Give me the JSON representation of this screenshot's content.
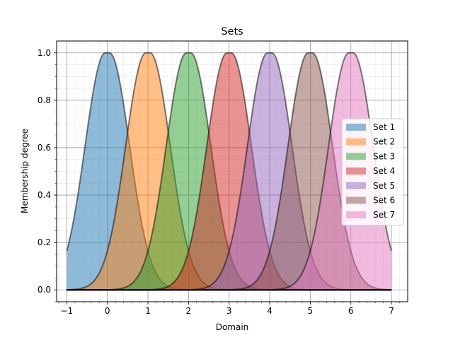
{
  "chart_data": {
    "type": "area",
    "title": "Sets",
    "xlabel": "Domain",
    "ylabel": "Membership degree",
    "xlim": [
      -1.25,
      7.4
    ],
    "ylim": [
      -0.05,
      1.05
    ],
    "grid": true,
    "minor_grid": true,
    "legend_position": "center-right",
    "x_ticks": [
      -1,
      0,
      1,
      2,
      3,
      4,
      5,
      6,
      7
    ],
    "x_tick_labels": [
      "−1",
      "0",
      "1",
      "2",
      "3",
      "4",
      "5",
      "6",
      "7"
    ],
    "y_ticks": [
      0.0,
      0.2,
      0.4,
      0.6,
      0.8,
      1.0
    ],
    "y_tick_labels": [
      "0.0",
      "0.2",
      "0.4",
      "0.6",
      "0.8",
      "1.0"
    ],
    "x_range": [
      -1,
      7
    ],
    "series": [
      {
        "name": "Set 1",
        "shape": "gaussian-plateau",
        "center": 0,
        "plateau_halfwidth": 0.05,
        "sigma": 0.5,
        "color": "#1f77b4"
      },
      {
        "name": "Set 2",
        "shape": "gaussian-plateau",
        "center": 1,
        "plateau_halfwidth": 0.05,
        "sigma": 0.5,
        "color": "#ff7f0e"
      },
      {
        "name": "Set 3",
        "shape": "gaussian-plateau",
        "center": 2,
        "plateau_halfwidth": 0.05,
        "sigma": 0.5,
        "color": "#2ca02c"
      },
      {
        "name": "Set 4",
        "shape": "gaussian-plateau",
        "center": 3,
        "plateau_halfwidth": 0.05,
        "sigma": 0.5,
        "color": "#d62728"
      },
      {
        "name": "Set 5",
        "shape": "gaussian-plateau",
        "center": 4,
        "plateau_halfwidth": 0.05,
        "sigma": 0.5,
        "color": "#9467bd"
      },
      {
        "name": "Set 6",
        "shape": "gaussian-plateau",
        "center": 5,
        "plateau_halfwidth": 0.05,
        "sigma": 0.5,
        "color": "#8c564b"
      },
      {
        "name": "Set 7",
        "shape": "gaussian-plateau",
        "center": 6,
        "plateau_halfwidth": 0.05,
        "sigma": 0.5,
        "color": "#e377c2"
      }
    ]
  }
}
